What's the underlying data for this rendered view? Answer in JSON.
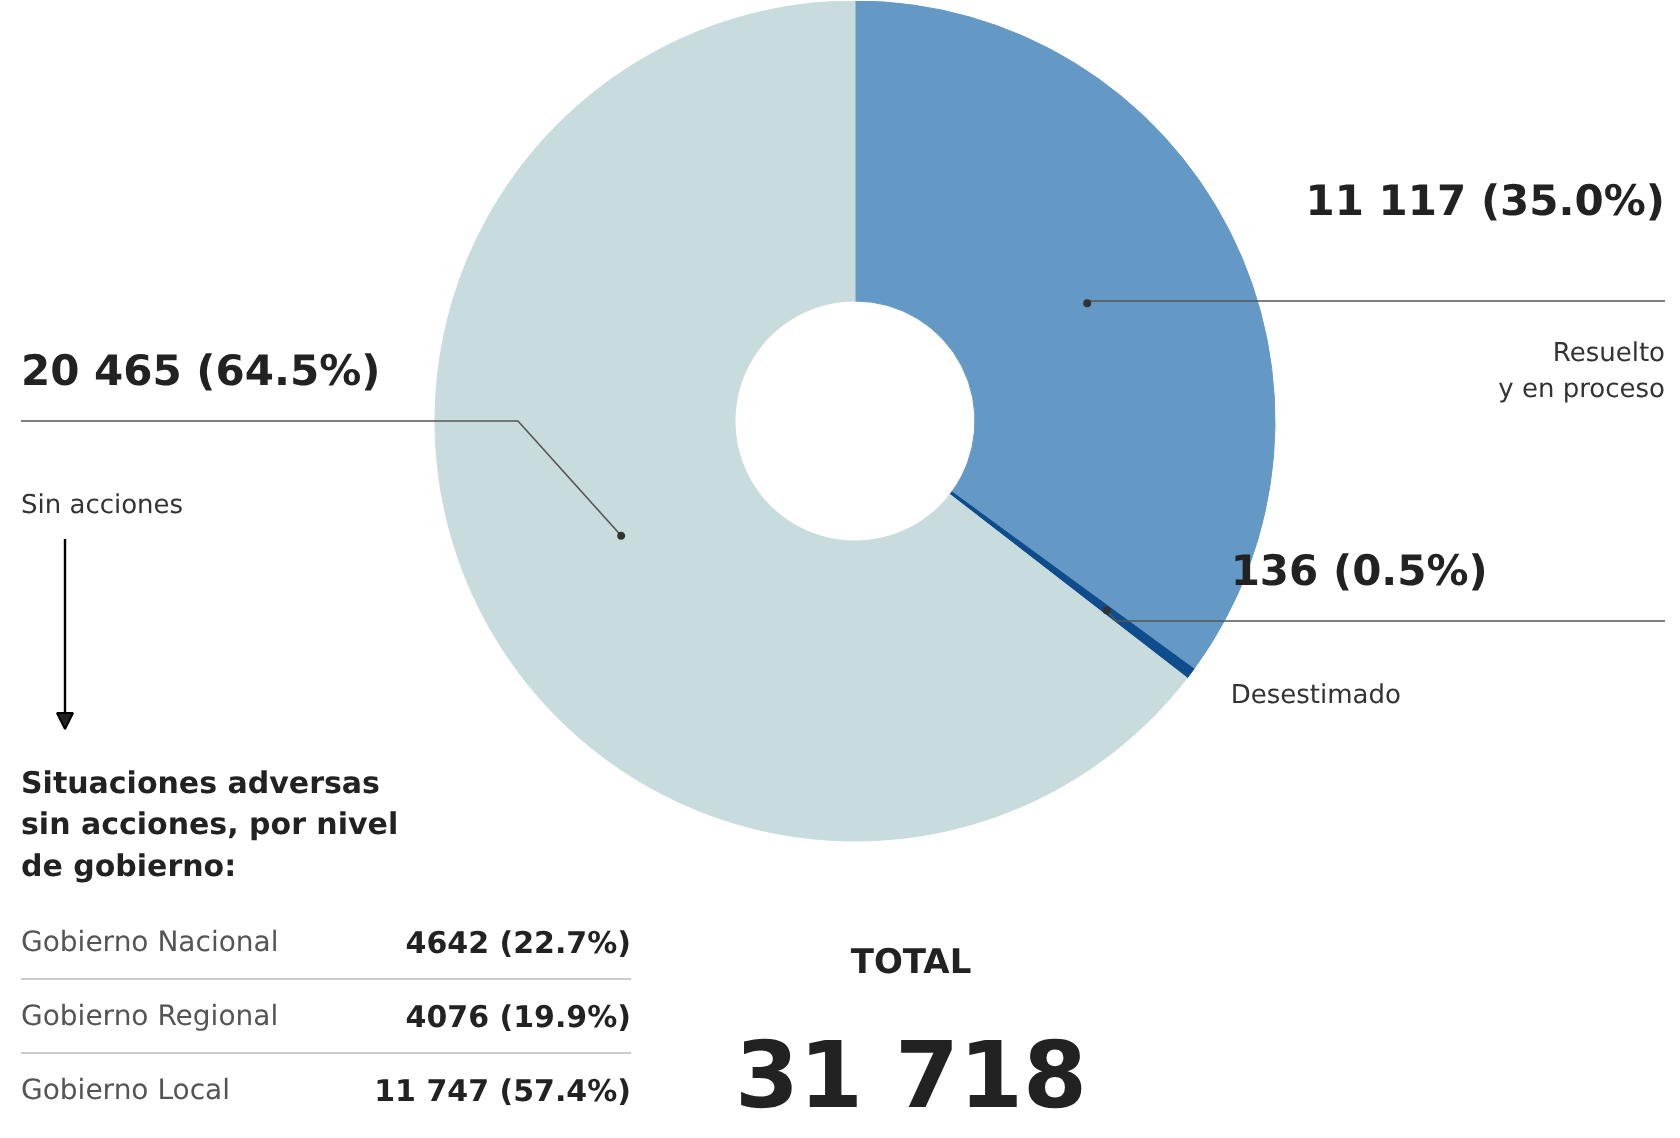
{
  "chart_data": {
    "type": "donut",
    "categories": [
      "Resuelto\ny en proceso",
      "Desestimado",
      "Sin acciones"
    ],
    "values": [
      11117,
      136,
      20465
    ],
    "colors": [
      "#6399c4",
      "#0f4c8c",
      "#c9dcdd"
    ],
    "value_labels": [
      "11 117 (35.0%)",
      "136 (0.5%)",
      "20 465 (64.5%)"
    ],
    "annotations": [
      "Situaciones adversas\nsin acciones, por nivel\nde gobierno:",
      "Gobierno Nacional",
      "4642 (22.7%)",
      "Gobierno Regional",
      "4076 (19.9%)",
      "Gobierno Local",
      "11 747 (57.4%)",
      "TOTAL",
      "31 718"
    ]
  }
}
